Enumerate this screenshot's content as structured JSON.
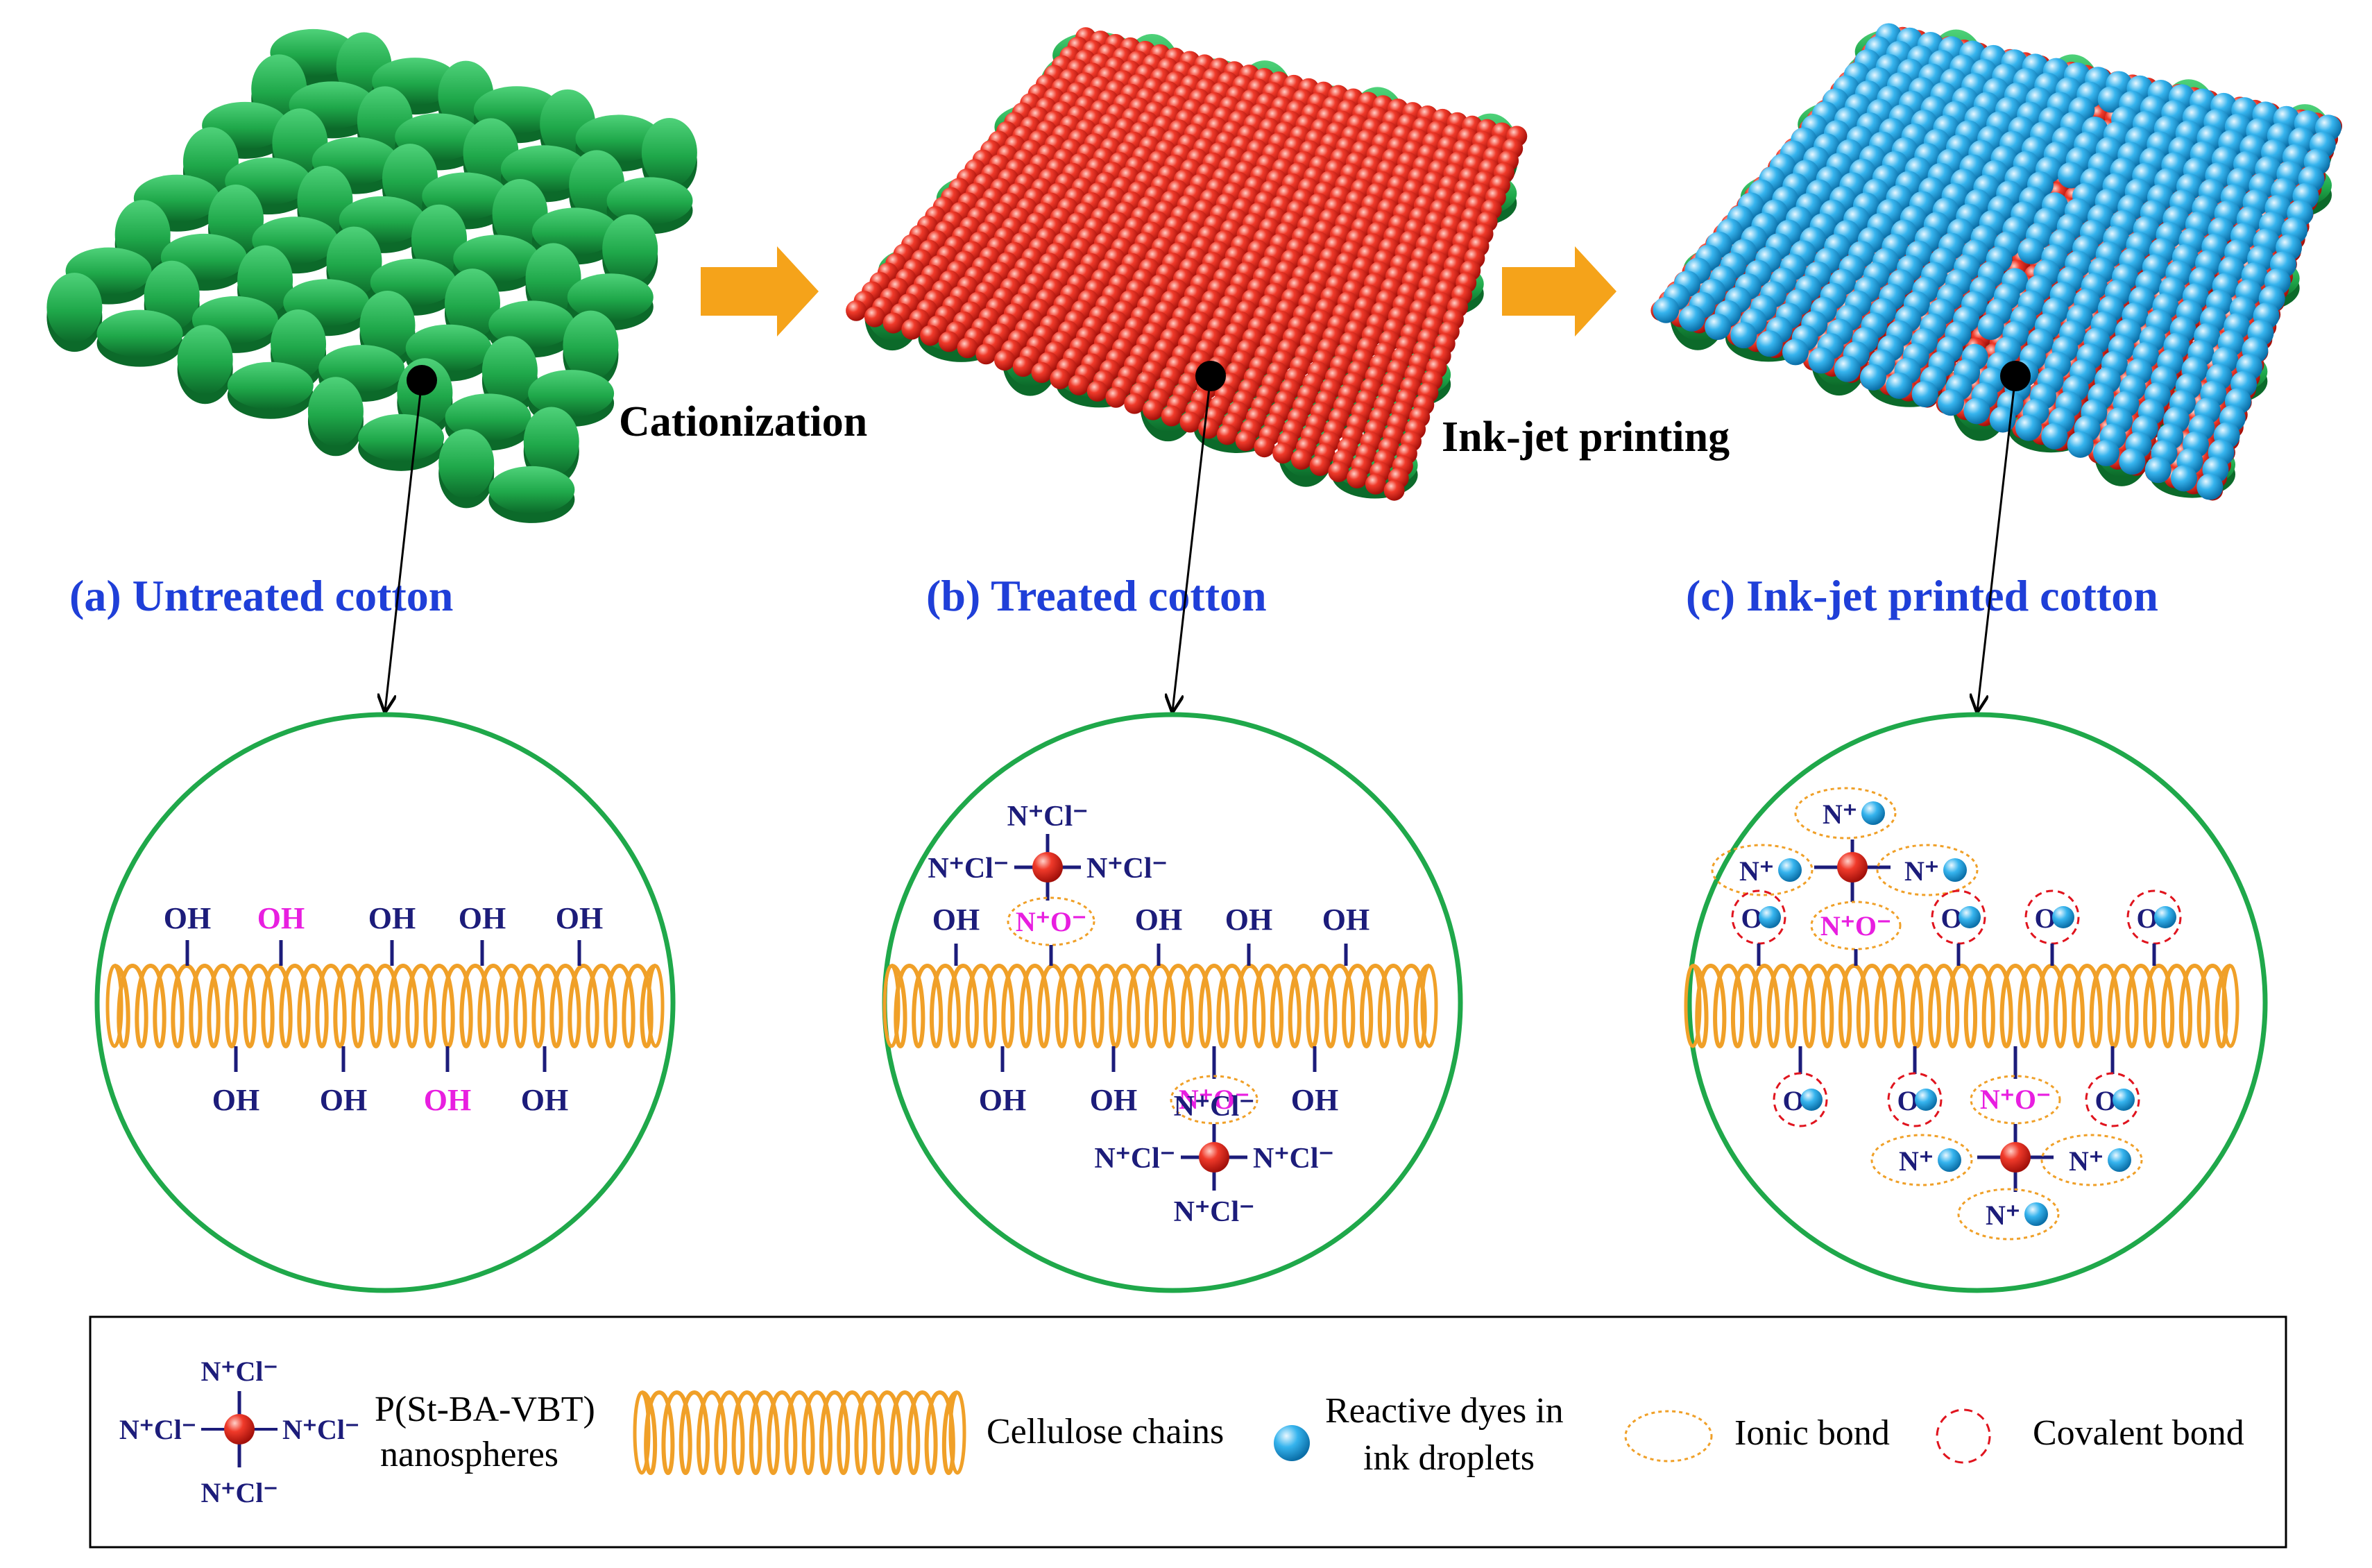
{
  "panels": [
    {
      "title": "(a) Untreated cotton"
    },
    {
      "title": "(b) Treated cotton"
    },
    {
      "title": "(c) Ink-jet printed cotton"
    }
  ],
  "steps": [
    {
      "label": "Cationization"
    },
    {
      "label": "Ink-jet printing"
    }
  ],
  "chem": {
    "oh": "OH",
    "nplus_cl": "N⁺Cl⁻",
    "nplus_ominus": "N⁺O⁻",
    "nplus": "N⁺",
    "o": "O"
  },
  "legend": {
    "nanosphere_line1": "P(St-BA-VBT)",
    "nanosphere_line2": "nanospheres",
    "cellulose": "Cellulose chains",
    "dye_line1": "Reactive dyes in",
    "dye_line2": "ink droplets",
    "ionic": "Ionic bond",
    "covalent": "Covalent bond"
  },
  "colors": {
    "fabric_green": "#1fa84a",
    "nanosphere_red": "#e8281e",
    "dye_blue": "#29a8e6",
    "cellulose_orange": "#f0a028",
    "title_blue": "#1f3fd8",
    "pink_label": "#e81ee0",
    "arrow_orange": "#f5a31a"
  }
}
